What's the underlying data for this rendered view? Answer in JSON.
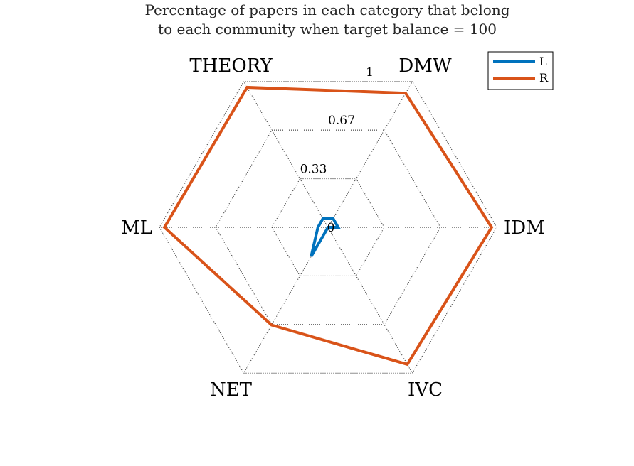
{
  "chart_data": {
    "type": "radar",
    "title": [
      "Percentage of papers in each category that belong",
      "to each community when target balance = 100"
    ],
    "categories": [
      "IDM",
      "DMW",
      "THEORY",
      "ML",
      "NET",
      "IVC"
    ],
    "rlim": [
      0,
      1
    ],
    "ticks": [
      "0",
      "0.33",
      "0.67",
      "1"
    ],
    "grid": "dotted",
    "legend_position": "top-right",
    "series": [
      {
        "name": "L",
        "color": "#0072BD",
        "values": [
          0.06,
          0.06,
          0.06,
          0.06,
          0.2,
          0.0
        ]
      },
      {
        "name": "R",
        "color": "#D95319",
        "values": [
          0.97,
          0.92,
          0.96,
          0.97,
          0.67,
          0.94
        ]
      }
    ]
  }
}
